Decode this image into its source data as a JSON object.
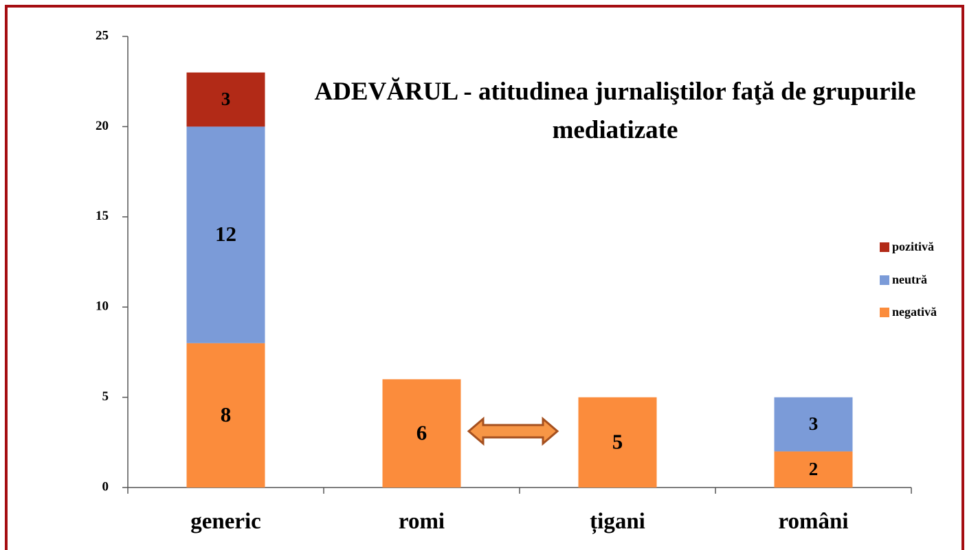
{
  "chart_data": {
    "type": "stacked_bar",
    "title": "ADEVĂRUL - atitudinea jurnaliştilor faţă de grupurile mediatizate",
    "categories": [
      "generic",
      "romi",
      "țigani",
      "români"
    ],
    "series": [
      {
        "name": "negativă",
        "color": "#fb8c3c",
        "values": [
          8,
          6,
          5,
          2
        ]
      },
      {
        "name": "neutră",
        "color": "#7b9bd8",
        "values": [
          12,
          0,
          0,
          3
        ]
      },
      {
        "name": "pozitivă",
        "color": "#b22a17",
        "values": [
          3,
          0,
          0,
          0
        ]
      }
    ],
    "ylim": [
      0,
      25
    ],
    "yticks": [
      0,
      5,
      10,
      15,
      20,
      25
    ],
    "legend": "right"
  }
}
